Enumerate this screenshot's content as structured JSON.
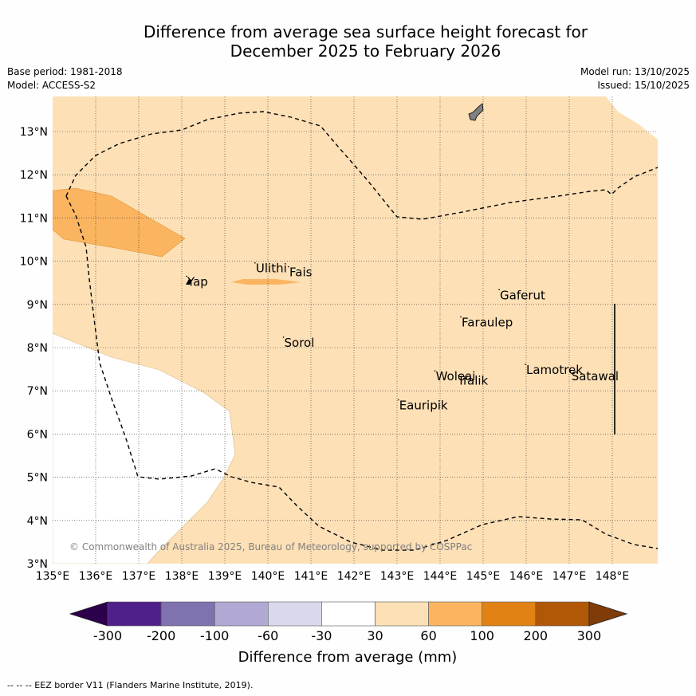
{
  "title_line1": "Difference from average sea surface height forecast for",
  "title_line2": "December 2025 to February 2026",
  "meta_left": {
    "base_period": "Base period: 1981-2018",
    "model": "Model: ACCESS-S2"
  },
  "meta_right": {
    "model_run": "Model run: 13/10/2025",
    "issued": "Issued: 15/10/2025"
  },
  "lon_labels": [
    "135°E",
    "136°E",
    "137°E",
    "138°E",
    "139°E",
    "140°E",
    "141°E",
    "142°E",
    "143°E",
    "144°E",
    "145°E",
    "146°E",
    "147°E",
    "148°E"
  ],
  "lat_labels": [
    "3°N",
    "4°N",
    "5°N",
    "6°N",
    "7°N",
    "8°N",
    "9°N",
    "10°N",
    "11°N",
    "12°N",
    "13°N"
  ],
  "places": [
    {
      "name": "Ulithi",
      "lon": 139.72,
      "lat": 9.85
    },
    {
      "name": "Fais",
      "lon": 140.5,
      "lat": 9.76
    },
    {
      "name": "Yap",
      "lon": 138.13,
      "lat": 9.54
    },
    {
      "name": "Gaferut",
      "lon": 145.39,
      "lat": 9.23
    },
    {
      "name": "Faraulep",
      "lon": 144.5,
      "lat": 8.6
    },
    {
      "name": "Sorol",
      "lon": 140.38,
      "lat": 8.13
    },
    {
      "name": "Woleai",
      "lon": 143.9,
      "lat": 7.35
    },
    {
      "name": "Ifalik",
      "lon": 144.45,
      "lat": 7.25
    },
    {
      "name": "Lamotrek",
      "lon": 146.0,
      "lat": 7.5
    },
    {
      "name": "Satawal",
      "lon": 147.05,
      "lat": 7.35
    },
    {
      "name": "Eauripik",
      "lon": 143.05,
      "lat": 6.68
    }
  ],
  "copyright": "© Commonwealth of Australia 2025, Bureau of Meteorology, supported by COSPPac",
  "colorbar": {
    "title": "Difference from average (mm)",
    "ticks": [
      "-300",
      "-200",
      "-100",
      "-60",
      "-30",
      "30",
      "60",
      "100",
      "200",
      "300"
    ],
    "colors": [
      "#50208a",
      "#7f72ae",
      "#b1a8d3",
      "#d9d9ed",
      "#ffffff",
      "#fde0b6",
      "#fbb460",
      "#e08214",
      "#b15806"
    ],
    "under_color": "#2d004b",
    "over_color": "#7f3b08"
  },
  "footer": "-- -- -- EEZ border V11 (Flanders Marine Institute, 2019).",
  "colors": {
    "land": "#808080",
    "grid": "#333333",
    "copyright": "#808080"
  }
}
